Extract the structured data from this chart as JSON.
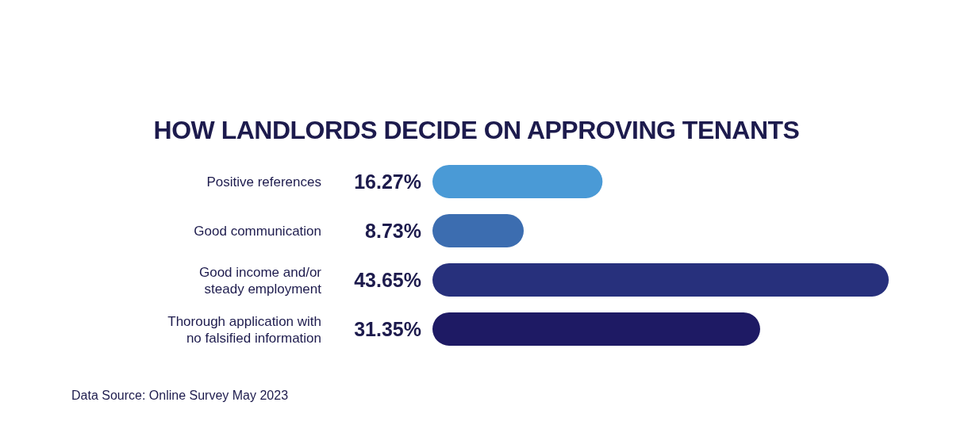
{
  "chart_data": {
    "type": "bar",
    "orientation": "horizontal",
    "title": "HOW LANDLORDS DECIDE ON APPROVING TENANTS",
    "categories": [
      "Positive references",
      "Good communication",
      "Good income and/or steady employment",
      "Thorough application with no falsified information"
    ],
    "values": [
      16.27,
      8.73,
      43.65,
      31.35
    ],
    "colors": [
      "#4a9ad6",
      "#3c6db0",
      "#27307c",
      "#1e1a64"
    ],
    "value_labels": [
      "16.27%",
      "8.73%",
      "43.65%",
      "31.35%"
    ],
    "tick_labels": false,
    "annotations": [
      "Data Source: Online Survey May 2023"
    ]
  }
}
